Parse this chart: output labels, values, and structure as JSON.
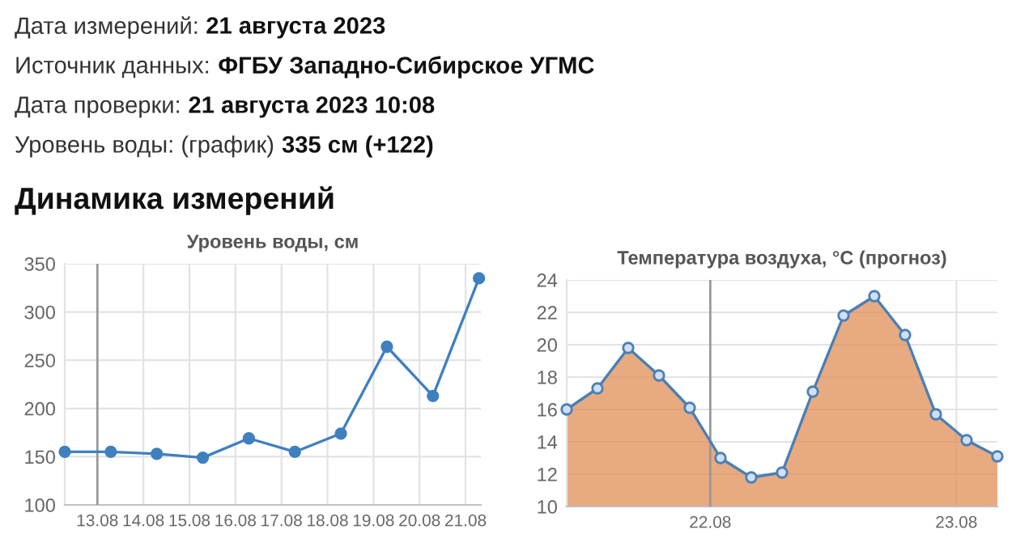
{
  "chart_data": [
    {
      "type": "other",
      "title": "Динамика измерений",
      "annotations": [
        "Дата измерений:",
        "21 августа 2023",
        "Источник данных:",
        "ФГБУ Западно-Сибирское УГМС",
        "Дата проверки:",
        "21 августа 2023 10:08",
        "Уровень воды: (график)",
        "335 см (+122)"
      ]
    },
    {
      "type": "line",
      "title": "Уровень воды, см",
      "x": [
        "2023-08-12T07:00",
        "2023-08-13T07:00",
        "2023-08-14T07:00",
        "2023-08-15T07:00",
        "2023-08-16T07:00",
        "2023-08-17T07:00",
        "2023-08-18T07:00",
        "2023-08-19T07:00",
        "2023-08-20T07:00",
        "2023-08-21T07:00"
      ],
      "series": [
        {
          "color": "#3f80bf",
          "values": [
            155,
            155,
            153,
            149,
            169,
            155,
            174,
            264,
            213,
            335
          ]
        }
      ],
      "xlim": [
        "2023-08-12T07:00",
        "2023-08-21T08:00"
      ],
      "xticks": [
        {
          "value": "2023-08-13",
          "label": "13.08"
        },
        {
          "value": "2023-08-14",
          "label": "14.08"
        },
        {
          "value": "2023-08-15",
          "label": "15.08"
        },
        {
          "value": "2023-08-16",
          "label": "16.08"
        },
        {
          "value": "2023-08-17",
          "label": "17.08"
        },
        {
          "value": "2023-08-18",
          "label": "18.08"
        },
        {
          "value": "2023-08-19",
          "label": "19.08"
        },
        {
          "value": "2023-08-20",
          "label": "20.08"
        },
        {
          "value": "2023-08-21",
          "label": "21.08"
        }
      ],
      "ylim": [
        100,
        350
      ],
      "yticks": [
        100,
        150,
        200,
        250,
        300,
        350
      ],
      "ref_lines": [
        {
          "axis": "x",
          "value": "2023-08-13",
          "color": "#999999"
        }
      ],
      "grid": true,
      "marker": "circle",
      "line_style": "solid"
    },
    {
      "type": "area",
      "title": "Температура воздуха, °C (прогноз)",
      "x": [
        "2023-08-21T10:00",
        "2023-08-21T13:00",
        "2023-08-21T16:00",
        "2023-08-21T19:00",
        "2023-08-21T22:00",
        "2023-08-22T01:00",
        "2023-08-22T04:00",
        "2023-08-22T07:00",
        "2023-08-22T10:00",
        "2023-08-22T13:00",
        "2023-08-22T16:00",
        "2023-08-22T19:00",
        "2023-08-22T22:00",
        "2023-08-23T01:00",
        "2023-08-23T04:00"
      ],
      "series": [
        {
          "color": "#e08d55",
          "values": [
            16.0,
            17.3,
            19.8,
            18.1,
            16.1,
            13.0,
            11.8,
            12.1,
            17.1,
            21.8,
            23.0,
            20.6,
            15.7,
            14.1,
            13.1
          ]
        },
        {
          "type": "line",
          "marker": "circle",
          "color": "#4a7fb5",
          "values": [
            16.0,
            17.3,
            19.8,
            18.1,
            16.1,
            13.0,
            11.8,
            12.1,
            17.1,
            21.8,
            23.0,
            20.6,
            15.7,
            14.1,
            13.1
          ]
        }
      ],
      "xlim": [
        "2023-08-21T10:00",
        "2023-08-23T04:00"
      ],
      "xticks": [
        {
          "value": "2023-08-22",
          "label": "22.08"
        },
        {
          "value": "2023-08-23",
          "label": "23.08"
        }
      ],
      "ylim": [
        10,
        24
      ],
      "yticks": [
        10,
        12,
        14,
        16,
        18,
        20,
        22,
        24
      ],
      "ref_lines": [
        {
          "axis": "x",
          "value": "2023-08-22",
          "color": "#999999"
        }
      ],
      "grid": true,
      "line_style": "solid"
    }
  ]
}
